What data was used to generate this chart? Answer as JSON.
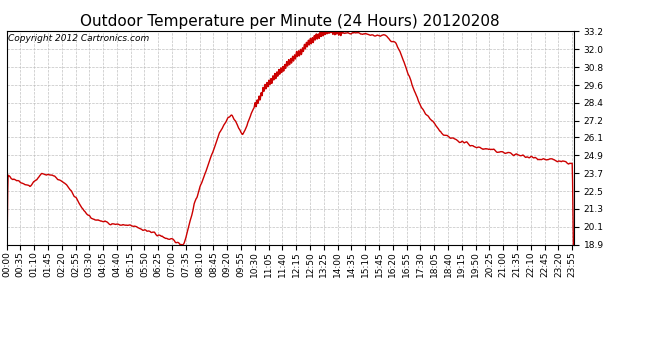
{
  "title": "Outdoor Temperature per Minute (24 Hours) 20120208",
  "copyright_text": "Copyright 2012 Cartronics.com",
  "line_color": "#cc0000",
  "background_color": "#ffffff",
  "plot_bg_color": "#ffffff",
  "grid_color": "#bbbbbb",
  "ylim": [
    18.9,
    33.2
  ],
  "yticks": [
    18.9,
    20.1,
    21.3,
    22.5,
    23.7,
    24.9,
    26.1,
    27.2,
    28.4,
    29.6,
    30.8,
    32.0,
    33.2
  ],
  "title_fontsize": 11,
  "copyright_fontsize": 6.5,
  "tick_fontsize": 6.5,
  "line_width": 1.0,
  "xtick_interval": 35
}
